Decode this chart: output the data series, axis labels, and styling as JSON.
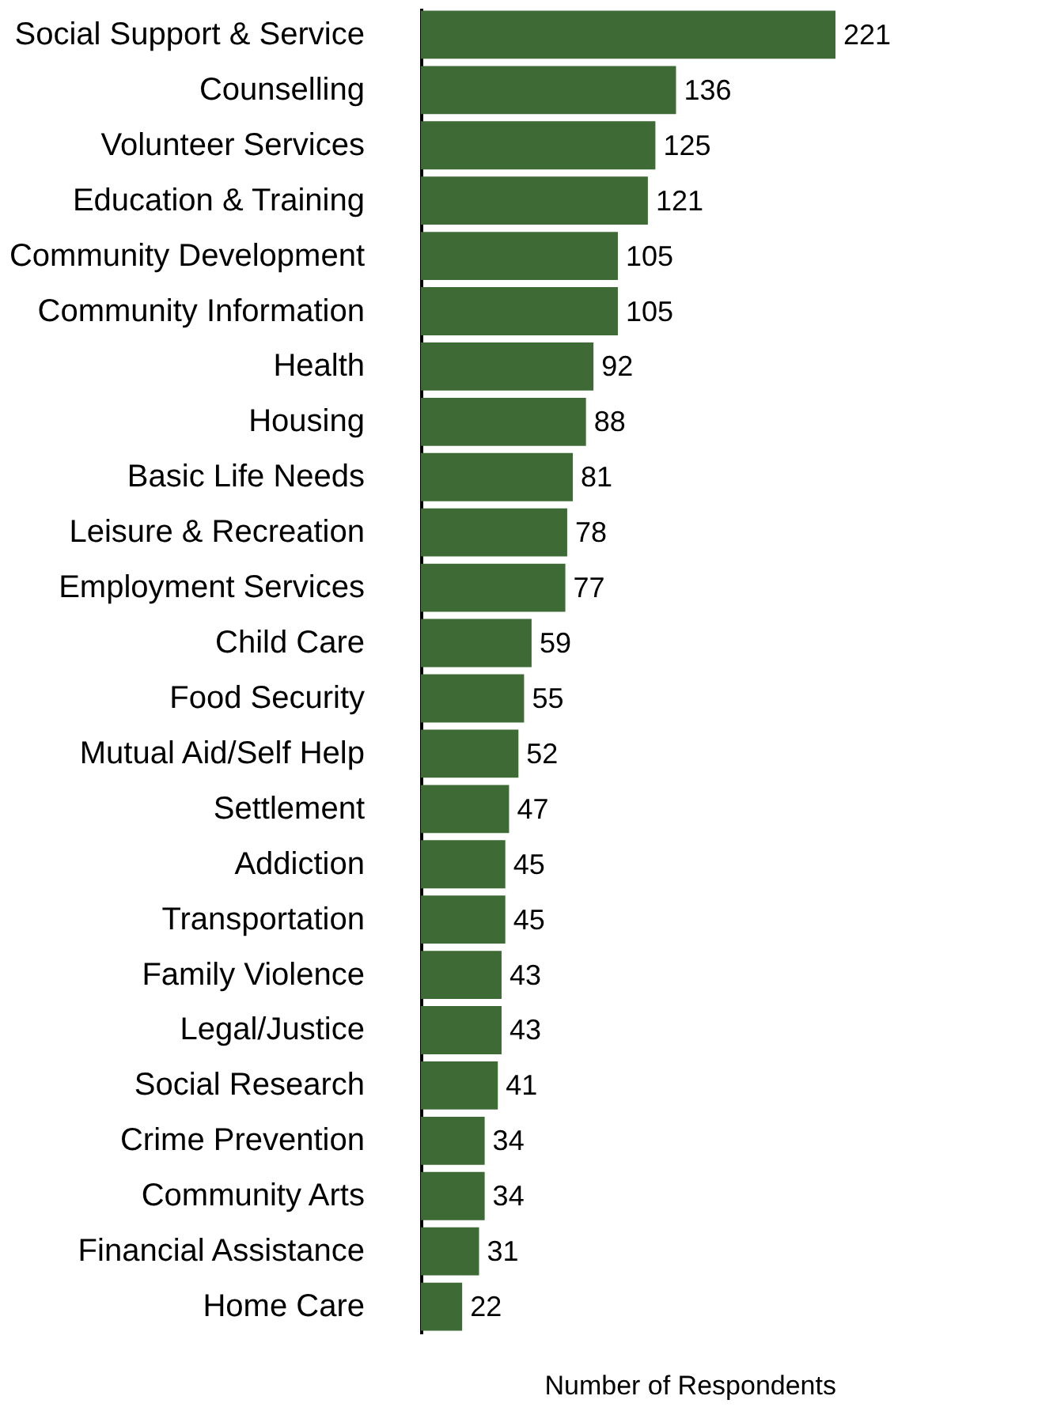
{
  "chart_data": {
    "type": "bar",
    "orientation": "horizontal",
    "xlabel": "Number of Respondents",
    "categories": [
      "Social Support & Service",
      "Counselling",
      "Volunteer Services",
      "Education & Training",
      "Community Development",
      "Community Information",
      "Health",
      "Housing",
      "Basic Life Needs",
      "Leisure & Recreation",
      "Employment Services",
      "Child Care",
      "Food Security",
      "Mutual Aid/Self Help",
      "Settlement",
      "Addiction",
      "Transportation",
      "Family Violence",
      "Legal/Justice",
      "Social Research",
      "Crime Prevention",
      "Community Arts",
      "Financial Assistance",
      "Home Care"
    ],
    "values": [
      221,
      136,
      125,
      121,
      105,
      105,
      92,
      88,
      81,
      78,
      77,
      59,
      55,
      52,
      47,
      45,
      45,
      43,
      43,
      41,
      34,
      34,
      31,
      22
    ],
    "color": "#3e6b35",
    "data_labels": true,
    "tick_labels": "y"
  }
}
